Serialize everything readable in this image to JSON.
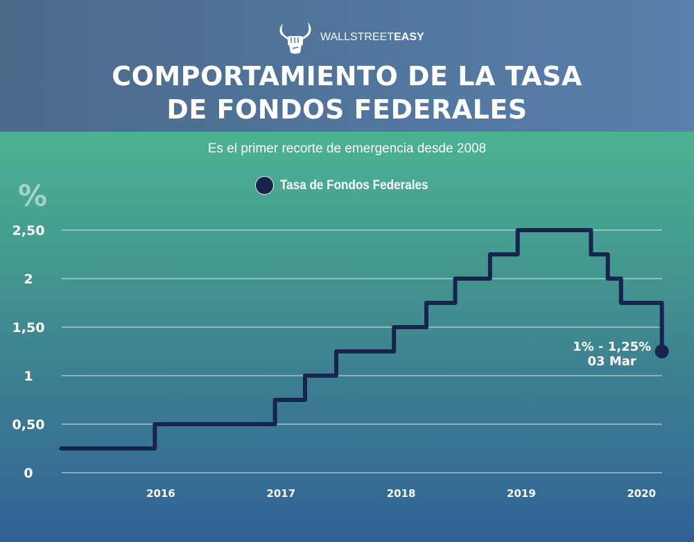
{
  "brand": {
    "name_light": "WALLSTREET",
    "name_bold": "EASY",
    "logo_icon": "bull-fist-logo-icon"
  },
  "header": {
    "title_line1": "COMPORTAMIENTO DE LA TASA",
    "title_line2": "DE FONDOS FEDERALES"
  },
  "subtitle": "Es el primer recorte de emergencia desde 2008",
  "colors": {
    "header_bg": "#5277a0",
    "body_top": "#4bb391",
    "body_bottom": "#305f96",
    "line": "#18244e",
    "text": "#ffffff"
  },
  "chart_data": {
    "type": "line",
    "step": true,
    "title": "COMPORTAMIENTO DE LA TASA DE FONDOS FEDERALES",
    "subtitle": "Es el primer recorte de emergencia desde 2008",
    "xlabel": "",
    "ylabel": "%",
    "ylim": [
      0,
      2.5
    ],
    "xlim": [
      2015.17,
      2020.17
    ],
    "grid": true,
    "legend": {
      "position": "top-center",
      "entries": [
        "Tasa de Fondos Federales"
      ]
    },
    "y_ticks": [
      {
        "value": 0,
        "label": "0"
      },
      {
        "value": 0.5,
        "label": "0,50"
      },
      {
        "value": 1,
        "label": "1"
      },
      {
        "value": 1.5,
        "label": "1,50"
      },
      {
        "value": 2,
        "label": "2"
      },
      {
        "value": 2.5,
        "label": "2,50"
      }
    ],
    "x_ticks": [
      {
        "value": 2016,
        "label": "2016"
      },
      {
        "value": 2017,
        "label": "2017"
      },
      {
        "value": 2018,
        "label": "2018"
      },
      {
        "value": 2019,
        "label": "2019"
      },
      {
        "value": 2020,
        "label": "2020"
      }
    ],
    "series": [
      {
        "name": "Tasa de Fondos Federales",
        "color": "#18244e",
        "points": [
          {
            "x": 2015.17,
            "y": 0.25
          },
          {
            "x": 2015.95,
            "y": 0.5
          },
          {
            "x": 2016.95,
            "y": 0.75
          },
          {
            "x": 2017.2,
            "y": 1.0
          },
          {
            "x": 2017.46,
            "y": 1.25
          },
          {
            "x": 2017.94,
            "y": 1.5
          },
          {
            "x": 2018.21,
            "y": 1.75
          },
          {
            "x": 2018.45,
            "y": 2.0
          },
          {
            "x": 2018.74,
            "y": 2.25
          },
          {
            "x": 2018.97,
            "y": 2.5
          },
          {
            "x": 2019.58,
            "y": 2.25
          },
          {
            "x": 2019.72,
            "y": 2.0
          },
          {
            "x": 2019.83,
            "y": 1.75
          },
          {
            "x": 2020.17,
            "y": 1.25
          }
        ]
      }
    ],
    "annotations": [
      {
        "x": 2020.17,
        "y": 1.25,
        "line1": "1% - 1,25%",
        "line2": "03 Mar"
      }
    ]
  }
}
